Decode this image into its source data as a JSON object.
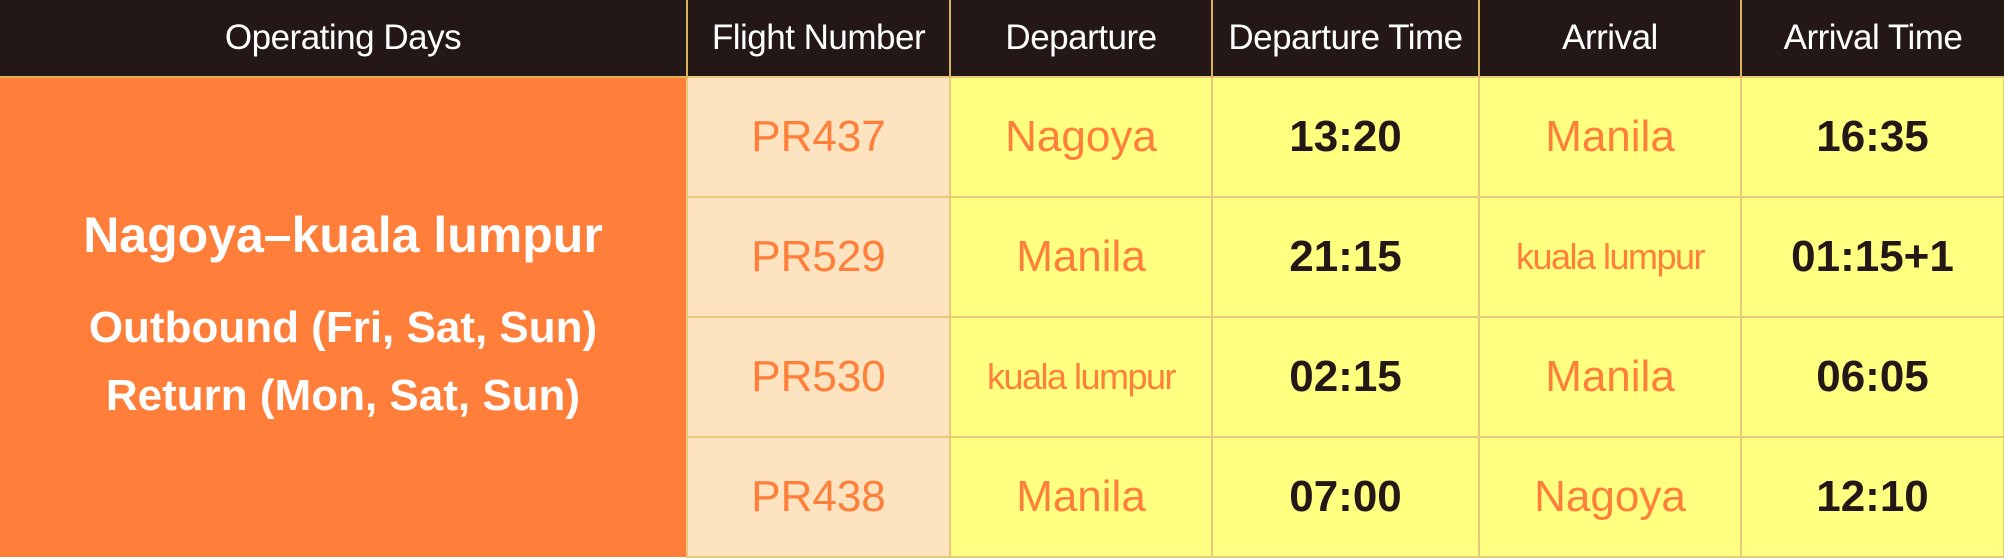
{
  "headers": [
    "Operating Days",
    "Flight Number",
    "Departure",
    "Departure Time",
    "Arrival",
    "Arrival Time"
  ],
  "operating_days": {
    "route": "Nagoya–kuala lumpur",
    "outbound": "Outbound (Fri, Sat, Sun)",
    "return": "Return (Mon, Sat, Sun)"
  },
  "rows": [
    {
      "flight": "PR437",
      "departure": "Nagoya",
      "departure_time": "13:20",
      "arrival": "Manila",
      "arrival_time": "16:35"
    },
    {
      "flight": "PR529",
      "departure": "Manila",
      "departure_time": "21:15",
      "arrival": "kuala lumpur",
      "arrival_time": "01:15+1"
    },
    {
      "flight": "PR530",
      "departure": "kuala lumpur",
      "departure_time": "02:15",
      "arrival": "Manila",
      "arrival_time": "06:05"
    },
    {
      "flight": "PR438",
      "departure": "Manila",
      "departure_time": "07:00",
      "arrival": "Nagoya",
      "arrival_time": "12:10"
    }
  ],
  "colors": {
    "header_bg": "#231815",
    "days_bg": "#ff7f3a",
    "flight_bg": "#fde3bf",
    "cell_bg": "#ffff80",
    "accent_text": "#ff7f3a",
    "dark_text": "#231815"
  }
}
